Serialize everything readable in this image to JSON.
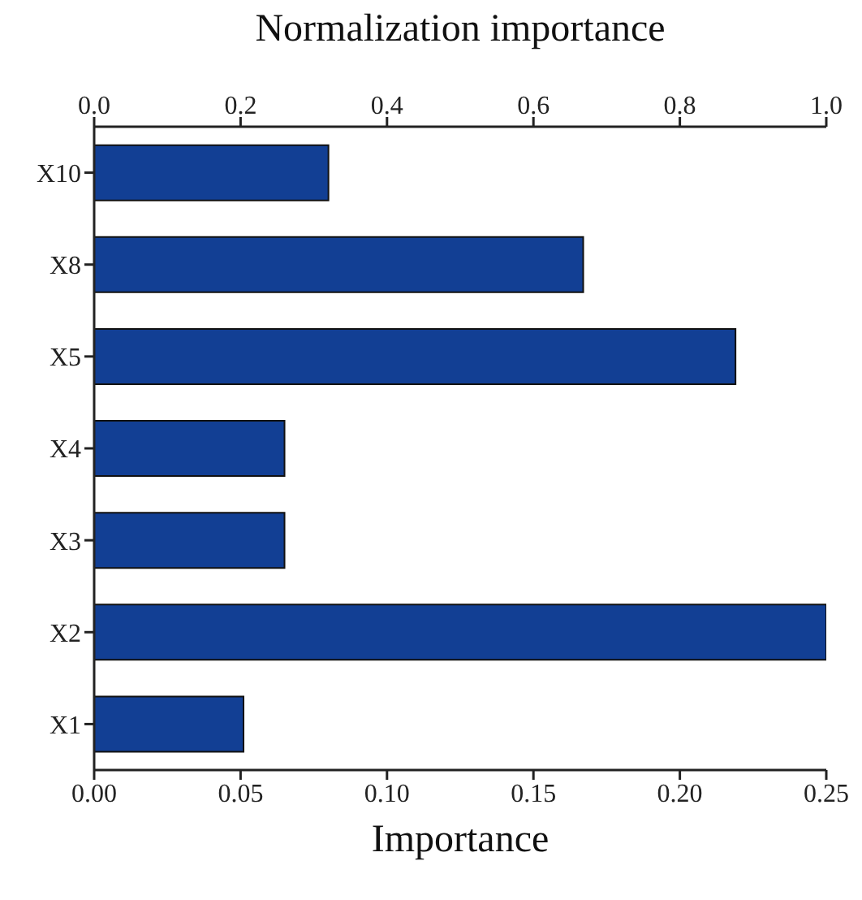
{
  "chart_data": {
    "type": "bar",
    "orientation": "horizontal",
    "categories": [
      "X10",
      "X8",
      "X5",
      "X4",
      "X3",
      "X2",
      "X1"
    ],
    "values": [
      0.08,
      0.167,
      0.219,
      0.065,
      0.065,
      0.25,
      0.051
    ],
    "color": "#123f94",
    "xlabel": "Importance",
    "x2label": "Normalization importance",
    "xlim": [
      0,
      0.25
    ],
    "xticks": [
      {
        "value": 0,
        "label": "0.00"
      },
      {
        "value": 0.05,
        "label": "0.05"
      },
      {
        "value": 0.1,
        "label": "0.10"
      },
      {
        "value": 0.15,
        "label": "0.15"
      },
      {
        "value": 0.2,
        "label": "0.20"
      },
      {
        "value": 0.25,
        "label": "0.25"
      }
    ],
    "x2lim": [
      0,
      1
    ],
    "x2ticks": [
      {
        "value": 0,
        "label": "0.0"
      },
      {
        "value": 0.2,
        "label": "0.2"
      },
      {
        "value": 0.4,
        "label": "0.4"
      },
      {
        "value": 0.6,
        "label": "0.6"
      },
      {
        "value": 0.8,
        "label": "0.8"
      },
      {
        "value": 1,
        "label": "1.0"
      }
    ],
    "grid": false,
    "legend": false
  }
}
